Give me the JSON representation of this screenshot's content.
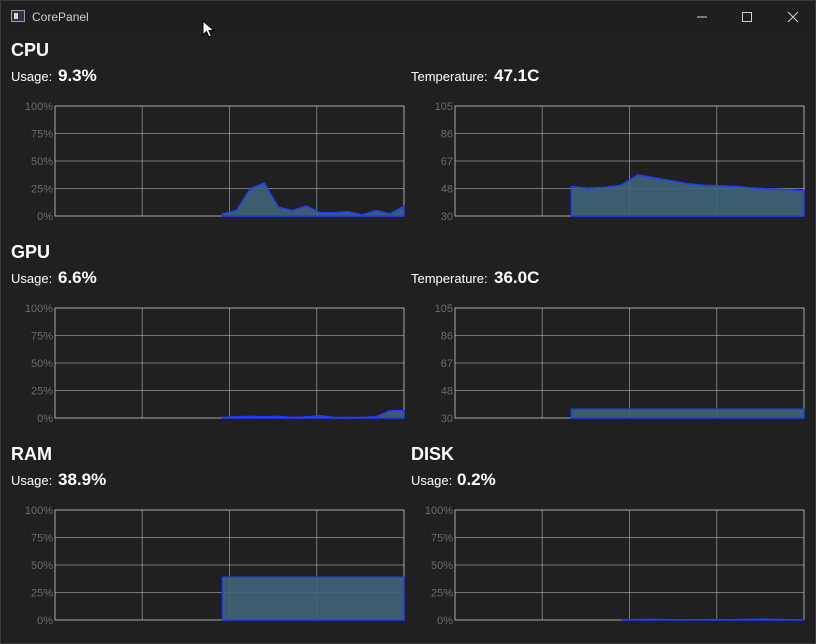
{
  "window": {
    "title": "CorePanel",
    "controls": [
      "minimize-icon",
      "maximize-icon",
      "close-icon"
    ]
  },
  "cpu": {
    "title": "CPU",
    "usage_label": "Usage:",
    "usage_value": "9.3%",
    "temp_label": "Temperature:",
    "temp_value": "47.1C"
  },
  "gpu": {
    "title": "GPU",
    "usage_label": "Usage:",
    "usage_value": "6.6%",
    "temp_label": "Temperature:",
    "temp_value": "36.0C"
  },
  "ram": {
    "title": "RAM",
    "usage_label": "Usage:",
    "usage_value": "38.9%"
  },
  "disk": {
    "title": "DISK",
    "usage_label": "Usage:",
    "usage_value": "0.2%"
  },
  "colors": {
    "fill": "#3e6478",
    "stroke": "#1f3cff",
    "grid": "#bdbdbd",
    "tick": "#6b6b6b"
  },
  "chart_data": [
    {
      "id": "cpu-usage",
      "type": "area",
      "ylim": [
        0,
        100
      ],
      "yticks": [
        "100%",
        "75%",
        "50%",
        "25%",
        "0%"
      ],
      "x": [
        12,
        13,
        14,
        15,
        16,
        17,
        18,
        19,
        20,
        21,
        22,
        23,
        24,
        25
      ],
      "values": [
        2,
        5,
        25,
        30,
        8,
        5,
        9,
        3,
        3,
        4,
        1,
        5,
        2,
        9
      ],
      "xlim": [
        0,
        25
      ]
    },
    {
      "id": "cpu-temp",
      "type": "area",
      "ylim": [
        30,
        105
      ],
      "yticks": [
        "105",
        "86",
        "67",
        "48",
        "30"
      ],
      "x": [
        0,
        1,
        2,
        3,
        4,
        5,
        6,
        7,
        8,
        9,
        10,
        11,
        12,
        13,
        14
      ],
      "values": [
        50,
        49,
        49.5,
        51,
        58,
        56,
        54,
        52,
        51,
        50.5,
        50,
        49,
        48.5,
        48,
        47.1
      ],
      "xlim": [
        -7,
        14
      ]
    },
    {
      "id": "gpu-usage",
      "type": "area",
      "ylim": [
        0,
        100
      ],
      "yticks": [
        "100%",
        "75%",
        "50%",
        "25%",
        "0%"
      ],
      "x": [
        12,
        13,
        14,
        15,
        16,
        17,
        18,
        19,
        20,
        21,
        22,
        23,
        24,
        25
      ],
      "values": [
        0.5,
        1,
        1.5,
        1,
        1.5,
        0.5,
        1,
        2,
        0.5,
        0.5,
        0.5,
        1,
        6.6,
        6.6
      ],
      "xlim": [
        0,
        25
      ]
    },
    {
      "id": "gpu-temp",
      "type": "area",
      "ylim": [
        30,
        105
      ],
      "yticks": [
        "105",
        "86",
        "67",
        "48",
        "30"
      ],
      "x": [
        0,
        14
      ],
      "values": [
        36,
        36
      ],
      "xlim": [
        -7,
        14
      ]
    },
    {
      "id": "ram-usage",
      "type": "area",
      "ylim": [
        0,
        100
      ],
      "yticks": [
        "100%",
        "75%",
        "50%",
        "25%",
        "0%"
      ],
      "x": [
        12,
        25
      ],
      "values": [
        38.9,
        38.9
      ],
      "xlim": [
        0,
        25
      ]
    },
    {
      "id": "disk-usage",
      "type": "area",
      "ylim": [
        0,
        100
      ],
      "yticks": [
        "100%",
        "75%",
        "50%",
        "25%",
        "0%"
      ],
      "x": [
        12,
        14,
        16,
        18,
        20,
        22,
        24,
        25
      ],
      "values": [
        0.2,
        0.5,
        0.2,
        0.3,
        0.2,
        0.8,
        0.2,
        0.2
      ],
      "xlim": [
        0,
        25
      ]
    }
  ]
}
